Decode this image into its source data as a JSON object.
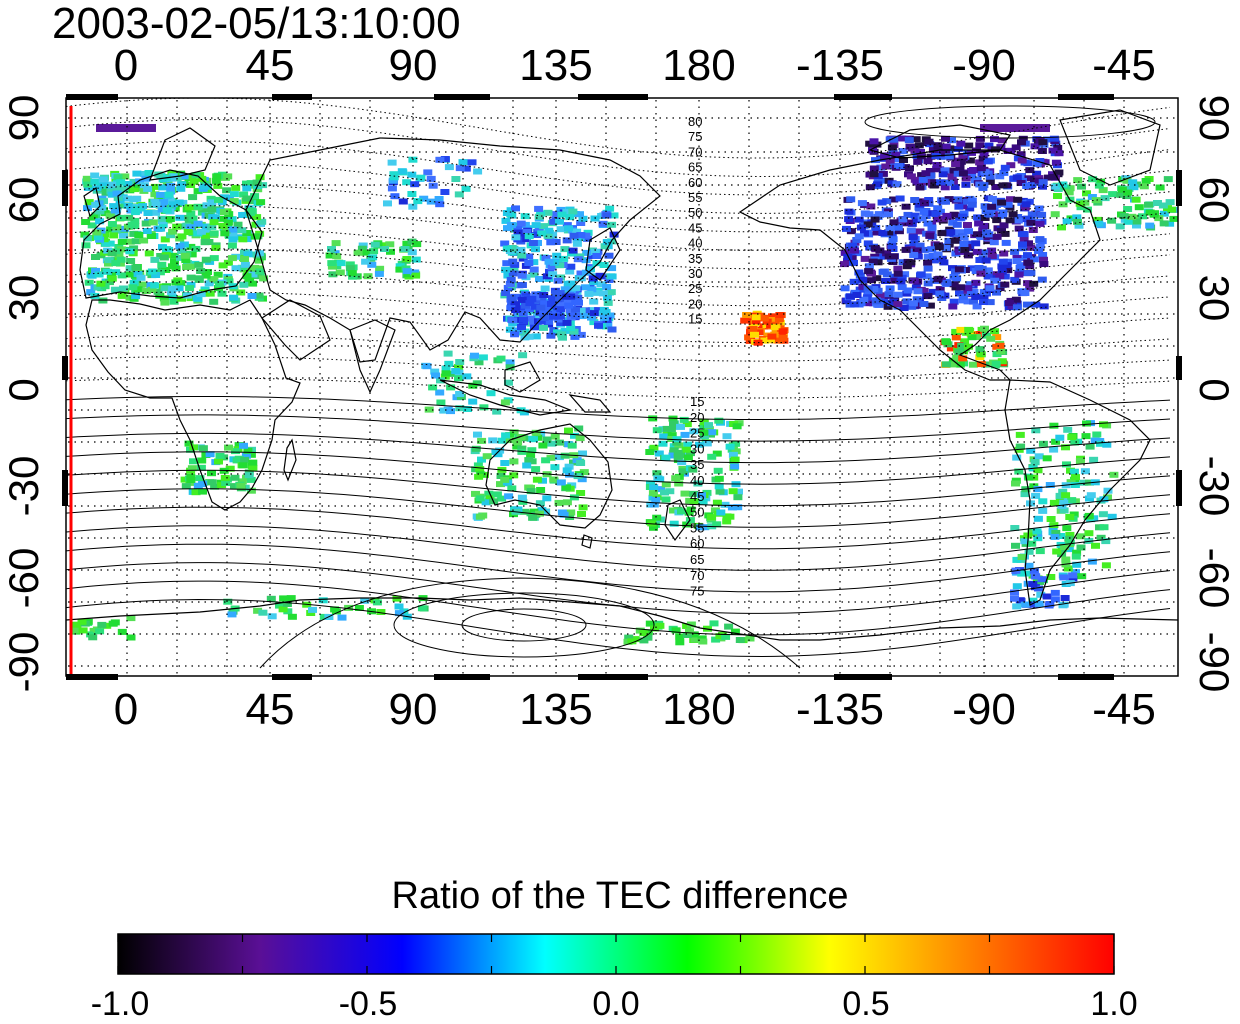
{
  "timestamp": "2003-02-05/13:10:00",
  "map": {
    "projection": "equirectangular",
    "longitude_ticks_top": [
      "0",
      "45",
      "90",
      "135",
      "180",
      "-135",
      "-90",
      "-45"
    ],
    "longitude_ticks_bottom": [
      "0",
      "45",
      "90",
      "135",
      "180",
      "-135",
      "-90",
      "-45"
    ],
    "latitude_ticks_left": [
      "90",
      "60",
      "30",
      "0",
      "-30",
      "-60",
      "-90"
    ],
    "latitude_ticks_right": [
      "90",
      "60",
      "30",
      "0",
      "-30",
      "-60",
      "-90"
    ],
    "grid": "dotted",
    "terminator_line_color": "#ff0000",
    "contour_labels_north": [
      "80",
      "75",
      "70",
      "65",
      "60",
      "55",
      "50",
      "45",
      "40",
      "35",
      "30",
      "25",
      "20",
      "15"
    ],
    "contour_labels_south": [
      "15",
      "20",
      "25",
      "30",
      "35",
      "40",
      "45",
      "50",
      "55",
      "60",
      "65",
      "70",
      "75"
    ]
  },
  "colorbar": {
    "title": "Ratio of the TEC difference",
    "tick_labels": [
      "-1.0",
      "-0.5",
      "0.0",
      "0.5",
      "1.0"
    ],
    "min": -1.0,
    "max": 1.0,
    "colors": [
      "#000000",
      "#5a0f96",
      "#0000ff",
      "#00ffff",
      "#00ff00",
      "#ffff00",
      "#ff8000",
      "#ff0000"
    ]
  }
}
